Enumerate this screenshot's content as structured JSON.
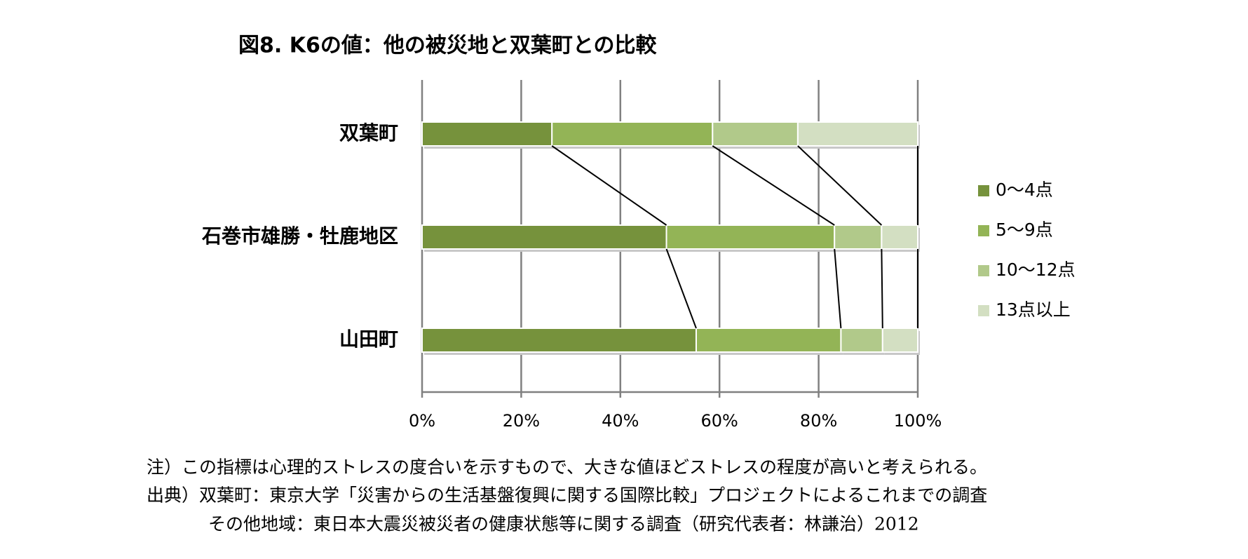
{
  "chart_data": {
    "type": "stacked-bar-horizontal",
    "title": "図8. K6の値：他の被災地と双葉町との比較",
    "categories": [
      "双葉町",
      "石巻市雄勝・牡鹿地区",
      "山田町"
    ],
    "series": [
      {
        "name": "0〜4点",
        "color": "#76923c",
        "values": [
          26.2,
          49.3,
          55.3
        ]
      },
      {
        "name": "5〜9点",
        "color": "#93b456",
        "values": [
          32.4,
          33.9,
          29.2
        ]
      },
      {
        "name": "10〜12点",
        "color": "#b1c98a",
        "values": [
          17.2,
          9.5,
          8.4
        ]
      },
      {
        "name": "13点以上",
        "color": "#d3dfc2",
        "values": [
          24.2,
          7.3,
          7.1
        ]
      }
    ],
    "xlim": [
      0,
      100
    ],
    "xticks": [
      {
        "value": 0,
        "label": "0%"
      },
      {
        "value": 20,
        "label": "20%"
      },
      {
        "value": 40,
        "label": "40%"
      },
      {
        "value": 60,
        "label": "60%"
      },
      {
        "value": 80,
        "label": "80%"
      },
      {
        "value": 100,
        "label": "100%"
      }
    ],
    "grid": true,
    "legend": "right",
    "notes": [
      "注）この指標は心理的ストレスの度合いを示すもので、大きな値ほどストレスの程度が高いと考えられる。",
      "出典）双葉町：東京大学「災害からの生活基盤復興に関する国際比較」プロジェクトによるこれまでの調査",
      "その他地域：東日本大震災被災者の健康状態等に関する調査（研究代表者：林謙治）2012"
    ]
  }
}
